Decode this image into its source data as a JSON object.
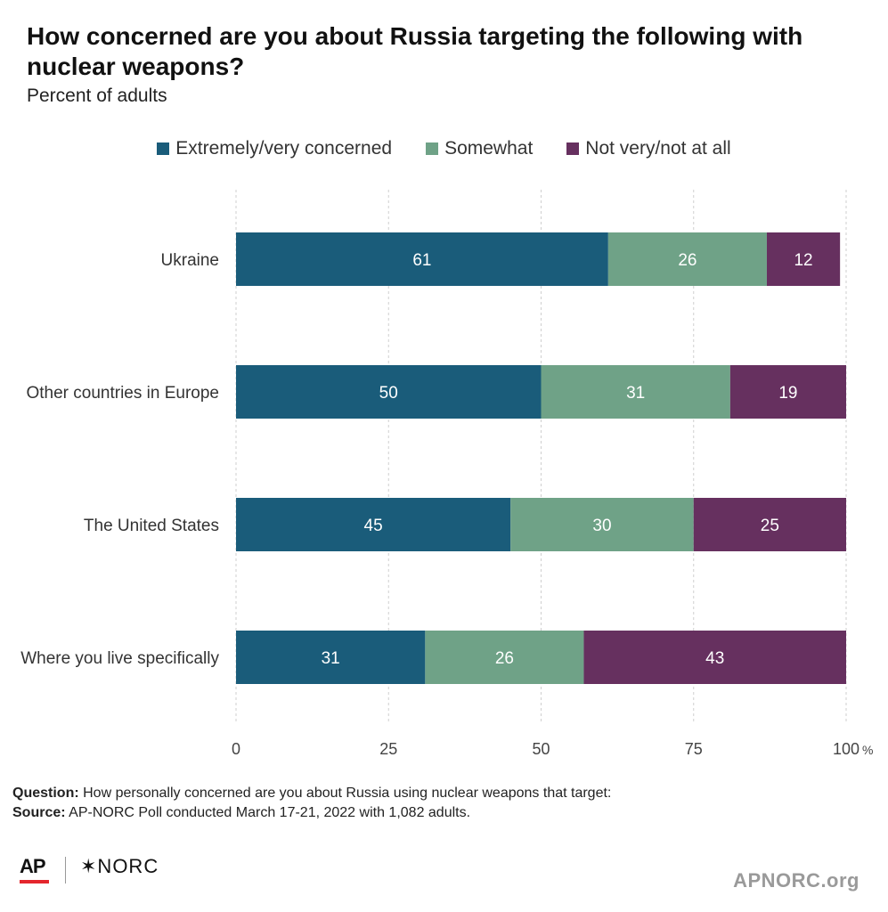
{
  "title": "How concerned are you about Russia targeting the following with nuclear weapons?",
  "subtitle": "Percent of adults",
  "legend": [
    {
      "label": "Extremely/very concerned",
      "color": "#1a5c7a"
    },
    {
      "label": "Somewhat",
      "color": "#6fa287"
    },
    {
      "label": "Not very/not at all",
      "color": "#66305f"
    }
  ],
  "chart_data": {
    "type": "bar",
    "orientation": "horizontal",
    "stacked": true,
    "categories": [
      "Ukraine",
      "Other countries in Europe",
      "The United States",
      "Where you live specifically"
    ],
    "series": [
      {
        "name": "Extremely/very concerned",
        "values": [
          61,
          50,
          45,
          31
        ],
        "color": "#1a5c7a"
      },
      {
        "name": "Somewhat",
        "values": [
          26,
          31,
          30,
          26
        ],
        "color": "#6fa287"
      },
      {
        "name": "Not very/not at all",
        "values": [
          12,
          19,
          25,
          43
        ],
        "color": "#66305f"
      }
    ],
    "xlim": [
      0,
      100
    ],
    "xticks": [
      "0",
      "25",
      "50",
      "75",
      "100"
    ],
    "xunit": "%",
    "grid": true,
    "legend_position": "top"
  },
  "footer": {
    "question_label": "Question:",
    "question_text": " How personally concerned are you about Russia using nuclear weapons that target:",
    "source_label": "Source:",
    "source_text": " AP-NORC Poll conducted March 17-21, 2022 with 1,082 adults."
  },
  "logos": {
    "ap": "AP",
    "norc": "✶NORC",
    "site": "APNORC.org"
  }
}
